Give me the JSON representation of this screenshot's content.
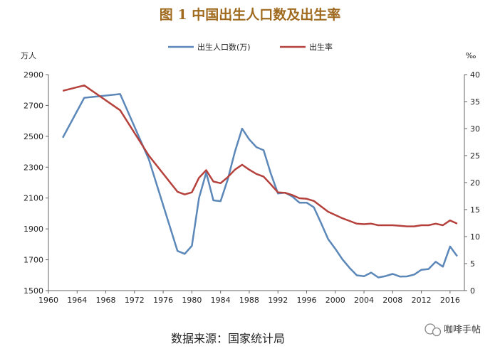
{
  "chart_data": {
    "type": "line",
    "title": "图 1 中国出生人口数及出生率",
    "source": "数据来源：国家统计局",
    "brand": "咖啡手帖",
    "y_left": {
      "unit": "万人",
      "min": 1500,
      "max": 2900,
      "ticks": [
        1500,
        1700,
        1900,
        2100,
        2300,
        2500,
        2700,
        2900
      ]
    },
    "y_right": {
      "unit": "‰",
      "min": 0,
      "max": 40,
      "ticks": [
        0,
        5,
        10,
        15,
        20,
        25,
        30,
        35,
        40
      ]
    },
    "x": {
      "min": 1960,
      "max": 2018,
      "ticks": [
        1960,
        1964,
        1968,
        1972,
        1976,
        1980,
        1984,
        1988,
        1992,
        1996,
        2000,
        2004,
        2008,
        2012,
        2016
      ]
    },
    "legend_placement": "top-center",
    "series": [
      {
        "name": "出生人口数(万)",
        "axis": "left",
        "color": "#5b87b9",
        "points": [
          [
            1962,
            2491
          ],
          [
            1965,
            2750
          ],
          [
            1970,
            2774
          ],
          [
            1974,
            2350
          ],
          [
            1978,
            1757
          ],
          [
            1979,
            1738
          ],
          [
            1980,
            1790
          ],
          [
            1981,
            2100
          ],
          [
            1982,
            2265
          ],
          [
            1983,
            2085
          ],
          [
            1984,
            2080
          ],
          [
            1985,
            2220
          ],
          [
            1986,
            2400
          ],
          [
            1987,
            2550
          ],
          [
            1988,
            2480
          ],
          [
            1989,
            2430
          ],
          [
            1990,
            2410
          ],
          [
            1991,
            2260
          ],
          [
            1992,
            2130
          ],
          [
            1993,
            2135
          ],
          [
            1994,
            2110
          ],
          [
            1995,
            2070
          ],
          [
            1996,
            2070
          ],
          [
            1997,
            2040
          ],
          [
            1998,
            1940
          ],
          [
            1999,
            1834
          ],
          [
            2000,
            1771
          ],
          [
            2001,
            1702
          ],
          [
            2002,
            1647
          ],
          [
            2003,
            1599
          ],
          [
            2004,
            1593
          ],
          [
            2005,
            1617
          ],
          [
            2006,
            1585
          ],
          [
            2007,
            1594
          ],
          [
            2008,
            1608
          ],
          [
            2009,
            1591
          ],
          [
            2010,
            1592
          ],
          [
            2011,
            1604
          ],
          [
            2012,
            1635
          ],
          [
            2013,
            1640
          ],
          [
            2014,
            1687
          ],
          [
            2015,
            1655
          ],
          [
            2016,
            1786
          ],
          [
            2017,
            1723
          ]
        ]
      },
      {
        "name": "出生率",
        "axis": "right",
        "color": "#b5413c",
        "points": [
          [
            1962,
            37.0
          ],
          [
            1965,
            38.0
          ],
          [
            1970,
            33.4
          ],
          [
            1974,
            25.0
          ],
          [
            1978,
            18.3
          ],
          [
            1979,
            17.8
          ],
          [
            1980,
            18.2
          ],
          [
            1981,
            20.9
          ],
          [
            1982,
            22.3
          ],
          [
            1983,
            20.2
          ],
          [
            1984,
            19.9
          ],
          [
            1985,
            21.0
          ],
          [
            1986,
            22.4
          ],
          [
            1987,
            23.3
          ],
          [
            1988,
            22.4
          ],
          [
            1989,
            21.6
          ],
          [
            1990,
            21.1
          ],
          [
            1991,
            19.7
          ],
          [
            1992,
            18.2
          ],
          [
            1993,
            18.1
          ],
          [
            1994,
            17.7
          ],
          [
            1995,
            17.1
          ],
          [
            1996,
            17.0
          ],
          [
            1997,
            16.6
          ],
          [
            1998,
            15.6
          ],
          [
            1999,
            14.6
          ],
          [
            2000,
            14.0
          ],
          [
            2001,
            13.4
          ],
          [
            2002,
            12.9
          ],
          [
            2003,
            12.4
          ],
          [
            2004,
            12.3
          ],
          [
            2005,
            12.4
          ],
          [
            2006,
            12.1
          ],
          [
            2007,
            12.1
          ],
          [
            2008,
            12.1
          ],
          [
            2009,
            12.0
          ],
          [
            2010,
            11.9
          ],
          [
            2011,
            11.9
          ],
          [
            2012,
            12.1
          ],
          [
            2013,
            12.1
          ],
          [
            2014,
            12.4
          ],
          [
            2015,
            12.1
          ],
          [
            2016,
            13.0
          ],
          [
            2017,
            12.4
          ]
        ]
      }
    ]
  }
}
